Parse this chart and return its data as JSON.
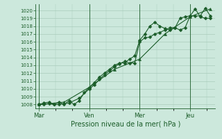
{
  "bg_color": "#cce8dc",
  "grid_color": "#aaccbb",
  "line_color": "#1a5c28",
  "title": "Pression niveau de la mer( hPa )",
  "ylim": [
    1007.5,
    1020.8
  ],
  "yticks": [
    1008,
    1009,
    1010,
    1011,
    1012,
    1013,
    1014,
    1015,
    1016,
    1017,
    1018,
    1019,
    1020
  ],
  "xtick_labels": [
    "Mar",
    "Ven",
    "Mer",
    "Jeu"
  ],
  "xtick_positions": [
    0,
    30,
    60,
    90
  ],
  "vline_positions": [
    0,
    30,
    60,
    90
  ],
  "xlim": [
    -2,
    105
  ],
  "series1_x": [
    0,
    3,
    6,
    9,
    12,
    15,
    18,
    21,
    24,
    27,
    30,
    33,
    36,
    39,
    42,
    45,
    48,
    51,
    54,
    57,
    60,
    63,
    66,
    69,
    72,
    75,
    78,
    81,
    84,
    87,
    90,
    93,
    96,
    99,
    102
  ],
  "series1_y": [
    1008.0,
    1008.0,
    1008.1,
    1008.0,
    1008.3,
    1008.0,
    1008.5,
    1008.0,
    1008.5,
    1009.5,
    1010.2,
    1010.8,
    1011.5,
    1012.0,
    1012.5,
    1013.0,
    1013.3,
    1013.3,
    1013.8,
    1014.2,
    1016.2,
    1017.0,
    1018.0,
    1018.5,
    1018.0,
    1017.7,
    1017.5,
    1017.8,
    1019.0,
    1019.2,
    1019.3,
    1020.2,
    1019.2,
    1019.0,
    1019.0
  ],
  "series2_x": [
    0,
    3,
    6,
    9,
    12,
    18,
    24,
    30,
    33,
    36,
    39,
    42,
    45,
    48,
    51,
    54,
    57,
    60,
    63,
    66,
    69,
    72,
    75,
    78,
    81,
    84,
    87,
    90,
    93,
    96,
    99,
    102
  ],
  "series2_y": [
    1008.0,
    1008.2,
    1008.3,
    1008.0,
    1008.0,
    1008.2,
    1008.8,
    1010.0,
    1010.5,
    1011.2,
    1011.8,
    1012.3,
    1012.8,
    1013.2,
    1013.5,
    1013.3,
    1013.3,
    1016.0,
    1016.5,
    1016.6,
    1017.0,
    1017.2,
    1017.5,
    1017.8,
    1017.8,
    1017.5,
    1017.8,
    1019.3,
    1019.3,
    1019.3,
    1020.3,
    1019.3
  ],
  "series3_x": [
    0,
    15,
    30,
    45,
    60,
    75,
    90,
    102
  ],
  "series3_y": [
    1008.0,
    1008.3,
    1010.2,
    1012.5,
    1013.8,
    1017.0,
    1019.2,
    1020.2
  ],
  "marker_size1": 2.5,
  "marker_size2": 2.5,
  "marker_size3": 3.0
}
